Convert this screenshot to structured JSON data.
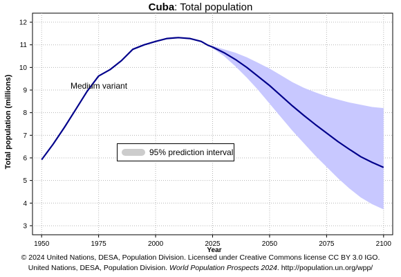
{
  "title": {
    "country": "Cuba",
    "rest": ": Total population"
  },
  "footer": {
    "line1": "© 2024 United Nations, DESA, Population Division. Licensed under Creative Commons license CC BY 3.0 IGO.",
    "line2_prefix": "United Nations, DESA, Population Division. ",
    "line2_italic": "World Population Prospects 2024",
    "line2_suffix": ". http://population.un.org/wpp/"
  },
  "colors": {
    "median": "#00008b",
    "interval": "#c8c8ff",
    "legend_swatch": "#cccccc",
    "grid": "#b4b4b4"
  },
  "chart_data": {
    "type": "line",
    "title": "Cuba: Total population",
    "xlabel": "Year",
    "ylabel": "Total population (millions)",
    "xlim": [
      1946,
      2104
    ],
    "ylim": [
      2.6,
      12.4
    ],
    "xticks": [
      1950,
      1975,
      2000,
      2025,
      2050,
      2075,
      2100
    ],
    "yticks": [
      3,
      4,
      5,
      6,
      7,
      8,
      9,
      10,
      11,
      12
    ],
    "grid": true,
    "annotation": "Medium variant",
    "legend": {
      "label": "95% prediction interval",
      "position": "center-left"
    },
    "series": [
      {
        "name": "Medium variant",
        "x": [
          1950,
          1955,
          1960,
          1965,
          1970,
          1975,
          1980,
          1985,
          1990,
          1995,
          2000,
          2005,
          2010,
          2015,
          2020,
          2023,
          2025,
          2030,
          2035,
          2040,
          2045,
          2050,
          2055,
          2060,
          2065,
          2070,
          2075,
          2080,
          2085,
          2090,
          2095,
          2100
        ],
        "y": [
          5.92,
          6.6,
          7.35,
          8.15,
          8.95,
          9.62,
          9.9,
          10.3,
          10.8,
          11.0,
          11.15,
          11.28,
          11.32,
          11.28,
          11.15,
          10.98,
          10.9,
          10.65,
          10.35,
          10.0,
          9.6,
          9.2,
          8.75,
          8.3,
          7.88,
          7.48,
          7.1,
          6.72,
          6.38,
          6.05,
          5.8,
          5.58
        ]
      },
      {
        "name": "95% prediction interval",
        "x": [
          2023,
          2025,
          2030,
          2035,
          2040,
          2045,
          2050,
          2055,
          2060,
          2065,
          2070,
          2075,
          2080,
          2085,
          2090,
          2095,
          2100
        ],
        "lower": [
          10.98,
          10.85,
          10.5,
          10.05,
          9.55,
          9.0,
          8.4,
          7.8,
          7.2,
          6.65,
          6.1,
          5.6,
          5.1,
          4.65,
          4.25,
          3.95,
          3.72
        ],
        "upper": [
          10.98,
          10.95,
          10.8,
          10.65,
          10.45,
          10.2,
          9.95,
          9.65,
          9.35,
          9.1,
          8.9,
          8.72,
          8.58,
          8.45,
          8.35,
          8.25,
          8.2
        ]
      }
    ]
  }
}
